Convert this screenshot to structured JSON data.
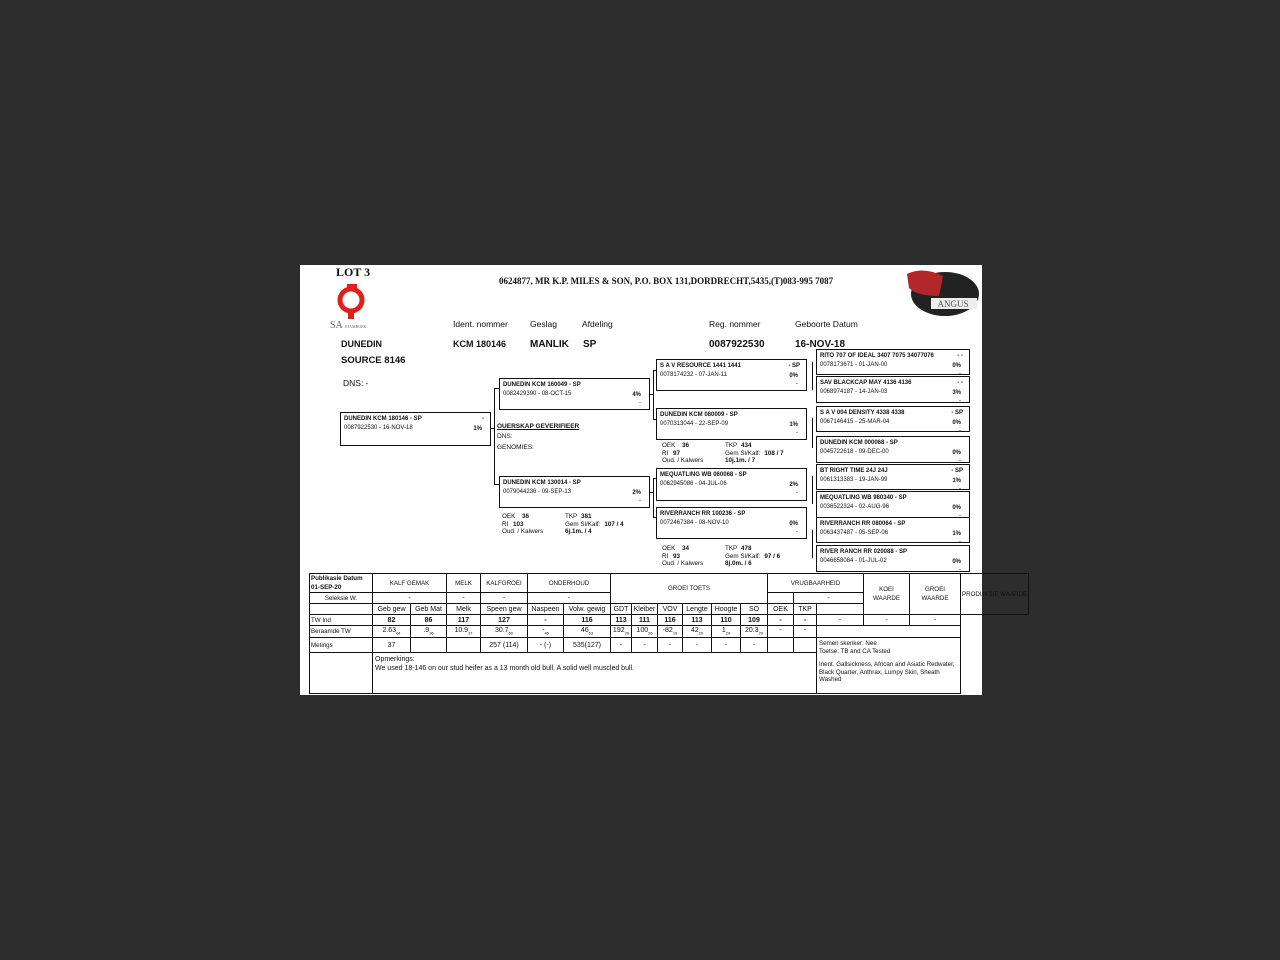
{
  "lot": "LOT 3",
  "breeder_line": "0624877,  MR K.P. MILES & SON, P.O. BOX 131,DORDRECHT,5435,(T)083-995 7087",
  "logos": {
    "left": "SA STAMBOEK STUDBOOK",
    "right": "ANGUS"
  },
  "colors": {
    "stamboek_red": "#e0201c",
    "angus_red": "#b3262a",
    "background": "#2d2d2d"
  },
  "animal": {
    "name1": "DUNEDIN",
    "name2": "SOURCE 8146",
    "dns": "DNS: -",
    "labels": {
      "ident": "Ident. nommer",
      "sex": "Geslag",
      "section": "Afdeling",
      "reg": "Reg. nommer",
      "dob": "Geboorte Datum"
    },
    "ident": "KCM 180146",
    "sex": "MANLIK",
    "section": "SP",
    "reg": "0087922530",
    "dob": "16-NOV-18"
  },
  "pedigree": {
    "self": {
      "name": "DUNEDIN KCM 180146 - SP",
      "line": "0087922530 -  16-NOV-18",
      "tag": "-",
      "pct": "1%"
    },
    "parentage": {
      "title": "OUERSKAP GEVERIFIEER",
      "dns": "DNS:",
      "genomics": "GENOMIES:"
    },
    "sire": {
      "name": "DUNEDIN KCM 160049 - SP",
      "line": "0082429390 - 08-OCT-15",
      "pct": "4%",
      "dash": "-"
    },
    "dam": {
      "name": "DUNEDIN KCM 130014 - SP",
      "line": "0079044236 - 09-SEP-13",
      "pct": "2%",
      "dash": "-"
    },
    "ss": {
      "name": "S A V RESOURCE 1441 1441",
      "tag": "- SP",
      "line": "0078174232 - 07-JAN-11",
      "pct": "0%",
      "dash": "-"
    },
    "sd": {
      "name": "DUNEDIN KCM 080009 - SP",
      "line": "0070313044 - 22-SEP-09",
      "pct": "1%",
      "dash": "-"
    },
    "ds": {
      "name": "MEQUATLING WB  060068 - SP",
      "line": "0062945086 - 04-JUL-06",
      "pct": "2%",
      "dash": "-"
    },
    "dd": {
      "name": "RIVERRANCH RR  100236 - SP",
      "line": "0072467384 - 08-NOV-10",
      "pct": "0%",
      "dash": "-"
    },
    "g4": [
      {
        "name": "RITO 707 OF IDEAL 3407 7075 34077076",
        "tag": "- -",
        "line": "0078173671 - 01-JAN-00",
        "pct": "0%",
        "dash": "-"
      },
      {
        "name": "SAV BLACKCAP MAY 4136 4136",
        "tag": "- -",
        "line": "0068974187 - 14-JAN-03",
        "pct": "3%",
        "dash": "-"
      },
      {
        "name": "S A V 004 DENSITY 4338 4338",
        "tag": "- SP",
        "line": "0067146415 - 25-MAR-04",
        "pct": "0%",
        "dash": "-"
      },
      {
        "name": "DUNEDIN KCM 000068 - SP",
        "tag": "",
        "line": "0045722618 - 09-DEC-00",
        "pct": "0%",
        "dash": "-"
      },
      {
        "name": "BT RIGHT TIME 24J 24J",
        "tag": "- SP",
        "line": "0061313383 - 19-JAN-99",
        "pct": "1%",
        "dash": "-"
      },
      {
        "name": "MEQUATLING WB  980340 - SP",
        "tag": "",
        "line": "0036522324 - 02-AUG-96",
        "pct": "0%",
        "dash": "-"
      },
      {
        "name": "RIVERRANCH RR  080064 - SP",
        "tag": "",
        "line": "0063437487 - 05-SEP-06",
        "pct": "1%",
        "dash": "-"
      },
      {
        "name": "RIVER RANCH RR  020088 - SP",
        "tag": "",
        "line": "0046658084 - 01-JUL-02",
        "pct": "0%",
        "dash": "-"
      }
    ],
    "stats": [
      {
        "oek_l": "OEK",
        "oek": "36",
        "tkp_l": "TKP",
        "tkp": "434",
        "ri_l": "RI",
        "ri": "97",
        "gem_l": "Gem Sl/Kalf:",
        "gem": "108 / 7",
        "oud_l": "Oud. / Kalwers",
        "oud": "10j.1m. / 7"
      },
      {
        "oek_l": "OEK",
        "oek": "36",
        "tkp_l": "TKP",
        "tkp": "381",
        "ri_l": "RI",
        "ri": "103",
        "gem_l": "Gem Sl/Kalf:",
        "gem": "107 / 4",
        "oud_l": "Oud. / Kalwers",
        "oud": "6j.1m. / 4"
      },
      {
        "oek_l": "OEK",
        "oek": "34",
        "tkp_l": "TKP",
        "tkp": "478",
        "ri_l": "RI",
        "ri": "93",
        "gem_l": "Gem Sl/Kalf:",
        "gem": "97 / 6",
        "oud_l": "Oud. / Kalwers",
        "oud": "8j.0m. / 6"
      }
    ]
  },
  "table": {
    "pub_label": "Publikasie Datum",
    "pub_date": "01-SEP-20",
    "groups": {
      "kalf": "KALF GEMAK",
      "melk": "MELK",
      "kalfgroei": "KALFGROEI",
      "onderhoud": "ONDERHOUD",
      "groei": "GROEI TOETS",
      "vrug": "VRUGBAARHEID",
      "koei": "KOEI WAARDE",
      "groeiw": "GROEI WAARDE",
      "produksie": "PRODUKSIE WAARDE"
    },
    "seleksie": {
      "label": "Seleksie W.",
      "kalf": "-",
      "melk": "-",
      "kalfgroei": "-",
      "onderhoud": "-",
      "vrug": "-"
    },
    "cols": [
      "Geb gew",
      "Geb Mat",
      "Melk",
      "Speen gew",
      "Naspeen",
      "Volw. gewig",
      "GDT",
      "Kleiber",
      "VOV",
      "Lengte",
      "Hoogte",
      "SO",
      "OEK",
      "TKP"
    ],
    "tw_label": "TW Ind",
    "tw": [
      "82",
      "86",
      "117",
      "127",
      "-",
      "116",
      "113",
      "111",
      "116",
      "113",
      "110",
      "109",
      "-",
      "-"
    ],
    "tw_index": [
      "-",
      "-",
      "-"
    ],
    "ber_label": "Beraamde TW",
    "ber": [
      [
        "2.63",
        "64"
      ],
      [
        ".9",
        "36"
      ],
      [
        "10.9",
        "37"
      ],
      [
        "30.7",
        "60"
      ],
      [
        "-",
        "45"
      ],
      [
        "46",
        "63"
      ],
      [
        "192",
        "26"
      ],
      [
        "100",
        "26"
      ],
      [
        "-82",
        "19"
      ],
      [
        "42",
        "26"
      ],
      [
        "1",
        "29"
      ],
      [
        "20.3",
        "29"
      ],
      [
        "-",
        ""
      ],
      [
        "-",
        ""
      ]
    ],
    "met_label": "Metings",
    "met": [
      "37",
      "",
      "",
      "257 (114)",
      "- (-)",
      "535(127)",
      "-",
      "-",
      "-",
      "-",
      "-",
      "-",
      "",
      ""
    ],
    "remarks_label": "Opmerkings:",
    "remarks": "We used 18-146 on our stud heifer as a 13 month old bull. A solid well muscled bull.",
    "semen": "Semen skenker: Nee",
    "tests": "Toetse: TB and CA Tested",
    "inent": "Inent. Gallsickness, African and Asiatic Redwater, Black Quarter, Anthrax, Lumpy Skin, Sheath Washed"
  }
}
